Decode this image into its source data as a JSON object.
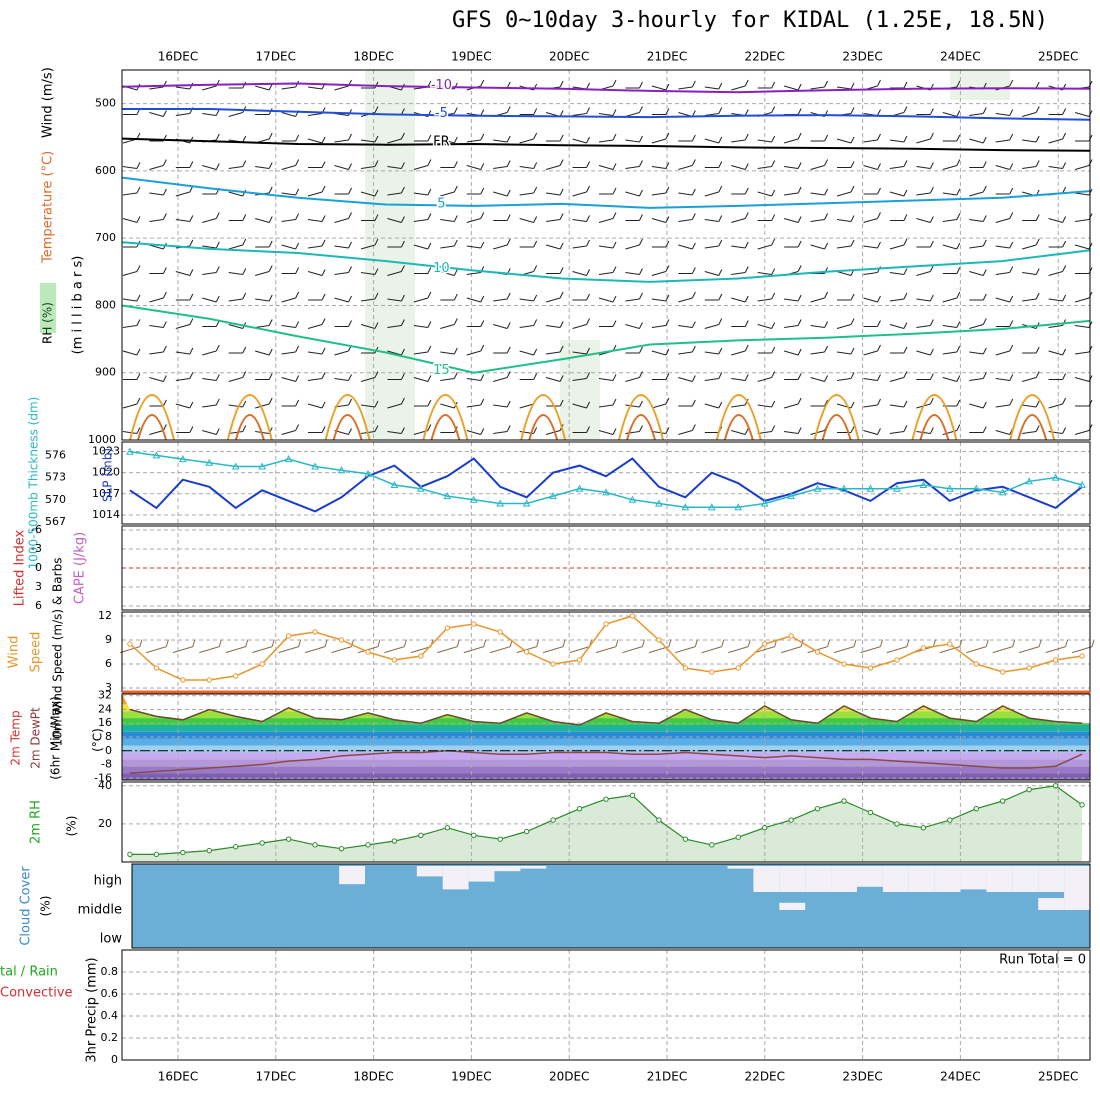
{
  "title": "GFS 0~10day 3-hourly for KIDAL (1.25E, 18.5N)",
  "colors": {
    "slp": "#1a3ccc",
    "thickness": "#27b8c8",
    "wind_speed": "#e8962a",
    "rh2m_fill": "#d9ead6",
    "rh2m_line": "#2a8a2a",
    "cloud": "#6baed6",
    "cloud_clear": "#f3f0f8",
    "grid": "#aaaaaa",
    "li_zero": "#d43030"
  },
  "chart_data": {
    "type": "line",
    "x_axis": {
      "dates": [
        "16DEC",
        "17DEC",
        "18DEC",
        "19DEC",
        "20DEC",
        "21DEC",
        "22DEC",
        "23DEC",
        "24DEC",
        "25DEC"
      ]
    },
    "panels": [
      {
        "id": "upper_air",
        "type": "contour",
        "ylabel_parts": [
          {
            "text": "RH (%)",
            "color": "#1fa81f"
          },
          {
            "text": "Temperature (°C)",
            "color": "#e06a2a"
          },
          {
            "text": "Wind (m/s)",
            "color": "#000000"
          }
        ],
        "ylabel2": "(m i l l i b a r s)",
        "yticks": [
          "500",
          "600",
          "700",
          "800",
          "900",
          "1000"
        ],
        "ylim": [
          450,
          1000
        ],
        "contours": [
          {
            "label": "-10",
            "color": "#8a1fbf",
            "levels": [
              475,
              472,
              470,
              474,
              476,
              478,
              481,
              483,
              480,
              478,
              477,
              478
            ]
          },
          {
            "label": "-5",
            "color": "#1f4fd8",
            "levels": [
              508,
              508,
              512,
              516,
              518,
              519,
              520,
              518,
              517,
              519,
              522,
              524
            ]
          },
          {
            "label": "FR",
            "color": "#000000",
            "levels": [
              552,
              556,
              560,
              561,
              560,
              562,
              563,
              565,
              566,
              567,
              569,
              570
            ]
          },
          {
            "label": "5",
            "color": "#1aa0d8",
            "levels": [
              610,
              626,
              640,
              650,
              652,
              649,
              655,
              652,
              648,
              644,
              640,
              630
            ]
          },
          {
            "label": "10",
            "color": "#1ab8b8",
            "levels": [
              706,
              716,
              722,
              734,
              748,
              760,
              765,
              760,
              750,
              742,
              734,
              718
            ]
          },
          {
            "label": "15",
            "color": "#1fbf8a",
            "levels": [
              800,
              820,
              846,
              870,
              900,
              880,
              858,
              852,
              848,
              842,
              835,
              823
            ]
          }
        ]
      },
      {
        "id": "slp_thickness",
        "ylabel_left": "1000-500mb Thickness (dm)",
        "ylabel_right": "SLP (mb)",
        "yticks_left": [
          "576",
          "573",
          "570",
          "567"
        ],
        "yticks_right": [
          "1023",
          "1020",
          "1017",
          "1014"
        ],
        "series": [
          {
            "name": "SLP (mb)",
            "values": [
              1017.5,
              1015,
              1019,
              1018,
              1015,
              1017.5,
              1016,
              1014.5,
              1016.5,
              1019.5,
              1021,
              1018,
              1019.5,
              1022,
              1018,
              1016.5,
              1020,
              1021,
              1019.5,
              1022,
              1018,
              1016.5,
              1020,
              1018.5,
              1016,
              1017,
              1018.5,
              1017.5,
              1016,
              1018.5,
              1019,
              1016,
              1017.5,
              1018,
              1016.5,
              1015,
              1018
            ]
          },
          {
            "name": "1000-500mb Thickness (dm)",
            "values": [
              576.5,
              576,
              575.5,
              575,
              574.5,
              574.5,
              575.5,
              574.5,
              574,
              573.5,
              572,
              571.5,
              570.5,
              570,
              569.5,
              569.5,
              570.5,
              571.5,
              571,
              570,
              569.5,
              569,
              569,
              569,
              569.5,
              570.5,
              571.5,
              571.5,
              571.5,
              571.5,
              572,
              571.5,
              571.5,
              571,
              572.5,
              573,
              572
            ]
          }
        ]
      },
      {
        "id": "cape_li",
        "ylabel_left": "Lifted Index",
        "ylabel_right": "CAPE (J/kg)",
        "yticks": [
          "-6",
          "-3",
          "0",
          "3",
          "6"
        ],
        "values": [
          0,
          0,
          0,
          0,
          0,
          0,
          0,
          0,
          0,
          0,
          0,
          0,
          0,
          0,
          0,
          0,
          0,
          0,
          0,
          0,
          0,
          0,
          0,
          0,
          0,
          0,
          0,
          0,
          0,
          0,
          0,
          0,
          0,
          0,
          0,
          0,
          0
        ]
      },
      {
        "id": "wind10m",
        "ylabel": "10m Wind Speed (m/s) & Barbs",
        "yticks": [
          "3",
          "6",
          "9",
          "12"
        ],
        "ylim": [
          2.5,
          12.5
        ],
        "series": [
          {
            "name": "10m Wind Speed",
            "values": [
              8.5,
              5.5,
              4,
              4,
              4.5,
              6,
              9.5,
              10,
              9,
              7.5,
              6.5,
              7,
              10.5,
              11,
              10,
              7.5,
              6,
              6.5,
              11,
              12,
              9,
              5.5,
              5,
              5.5,
              8.5,
              9.5,
              7.5,
              6,
              5.5,
              6.5,
              8,
              8.5,
              6,
              5,
              5.5,
              6.5,
              7
            ]
          }
        ]
      },
      {
        "id": "temp2m",
        "ylabel": "2m Temp 2m DewPt (6hr Min/Max) (°C)",
        "yticks": [
          "32",
          "24",
          "16",
          "8",
          "0",
          "-8",
          "-16"
        ],
        "ylim": [
          -17,
          33
        ],
        "series": [
          {
            "name": "2m Temp",
            "values": [
              24,
              20,
              18,
              24,
              20,
              17,
              25,
              19,
              18,
              22,
              18,
              16,
              21,
              17,
              16,
              22,
              17,
              15,
              22,
              17,
              16,
              24,
              18,
              16,
              26,
              18,
              16,
              26,
              19,
              17,
              26,
              19,
              17,
              26,
              19,
              17,
              16
            ]
          },
          {
            "name": "2m DewPt",
            "values": [
              -13,
              -12,
              -11,
              -10,
              -9,
              -8,
              -6,
              -5,
              -3,
              -2,
              -1,
              -1,
              0,
              -1,
              -2,
              -2,
              -1,
              -1,
              -1,
              -2,
              -2,
              -1,
              -2,
              -3,
              -4,
              -3,
              -4,
              -5,
              -5,
              -6,
              -7,
              -8,
              -9,
              -10,
              -10,
              -9,
              -2
            ]
          }
        ]
      },
      {
        "id": "rh2m",
        "ylabel": "2m RH (%)",
        "yticks": [
          "20",
          "40"
        ],
        "ylim": [
          0,
          42
        ],
        "series": [
          {
            "name": "2m RH",
            "values": [
              4,
              4,
              5,
              6,
              8,
              10,
              12,
              9,
              7,
              9,
              11,
              14,
              18,
              14,
              12,
              16,
              22,
              28,
              33,
              35,
              22,
              12,
              9,
              13,
              18,
              22,
              28,
              32,
              26,
              20,
              18,
              22,
              28,
              32,
              38,
              40,
              30
            ]
          }
        ]
      },
      {
        "id": "cloud",
        "ylabel": "Cloud Cover (%)",
        "levels": [
          "high",
          "middle",
          "low"
        ],
        "high_clear_fraction": [
          0,
          0,
          0,
          0,
          0,
          0,
          0,
          0,
          0.7,
          0,
          0,
          0.4,
          0.9,
          0.6,
          0.2,
          0.1,
          0,
          0,
          0,
          0,
          0,
          0,
          0,
          0.1,
          1,
          1,
          1,
          1,
          0.8,
          1,
          1,
          1,
          0.9,
          1,
          1,
          1,
          1
        ],
        "middle_clear_fraction": [
          0,
          0,
          0,
          0,
          0,
          0,
          0,
          0,
          0,
          0,
          0,
          0,
          0,
          0,
          0,
          0,
          0,
          0,
          0,
          0,
          0,
          0,
          0,
          0,
          0,
          0.3,
          0,
          0,
          0,
          0,
          0,
          0,
          0,
          0,
          0,
          0.5,
          0.8
        ]
      },
      {
        "id": "precip",
        "ylabel_parts": [
          {
            "text": "tal / Rain",
            "color": "#1fa81f"
          },
          {
            "text": "Convective",
            "color": "#d43030"
          },
          {
            "text": "3hr Precip (mm)",
            "color": "#000000"
          }
        ],
        "yticks": [
          "0",
          "0.2",
          "0.4",
          "0.6",
          "0.8"
        ],
        "ylim": [
          0,
          1
        ],
        "run_total_label": "Run Total = 0",
        "values": [
          0,
          0,
          0,
          0,
          0,
          0,
          0,
          0,
          0,
          0,
          0,
          0,
          0,
          0,
          0,
          0,
          0,
          0,
          0,
          0,
          0,
          0,
          0,
          0,
          0,
          0,
          0,
          0,
          0,
          0,
          0,
          0,
          0,
          0,
          0,
          0,
          0
        ]
      }
    ]
  }
}
